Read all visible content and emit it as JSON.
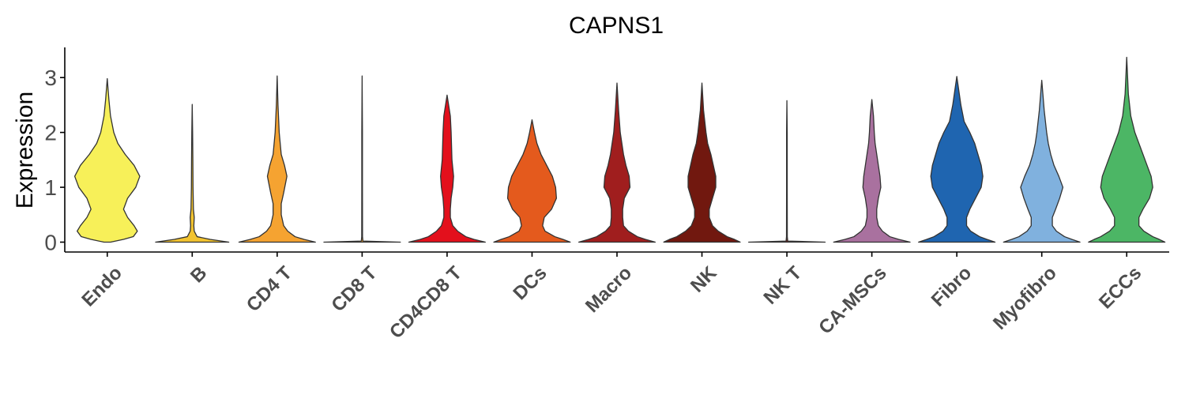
{
  "chart_data": {
    "type": "violin",
    "title": "CAPNS1",
    "xlabel": "",
    "ylabel": "Expression",
    "ylim": [
      -0.18,
      3.55
    ],
    "yticks": [
      0,
      1,
      2,
      3
    ],
    "grid": false,
    "legend": "none",
    "categories": [
      "Endo",
      "B",
      "CD4 T",
      "CD8 T",
      "CD4CD8 T",
      "DCs",
      "Macro",
      "NK",
      "NK T",
      "CA-MSCs",
      "Fibro",
      "Myofibro",
      "ECCs"
    ],
    "series": [
      {
        "category": "Endo",
        "color": "#F7F059",
        "max": 2.98,
        "profile": [
          [
            0,
            0.04
          ],
          [
            0.05,
            0.2
          ],
          [
            0.1,
            0.32
          ],
          [
            0.2,
            0.37
          ],
          [
            0.3,
            0.33
          ],
          [
            0.45,
            0.25
          ],
          [
            0.6,
            0.2
          ],
          [
            0.8,
            0.25
          ],
          [
            1.0,
            0.35
          ],
          [
            1.2,
            0.4
          ],
          [
            1.4,
            0.33
          ],
          [
            1.6,
            0.22
          ],
          [
            1.8,
            0.13
          ],
          [
            2.0,
            0.08
          ],
          [
            2.3,
            0.04
          ],
          [
            2.6,
            0.02
          ],
          [
            2.98,
            0
          ]
        ]
      },
      {
        "category": "B",
        "color": "#F2C330",
        "max": 2.51,
        "profile": [
          [
            0,
            0.45
          ],
          [
            0.05,
            0.22
          ],
          [
            0.1,
            0.06
          ],
          [
            0.2,
            0.025
          ],
          [
            0.3,
            0.02
          ],
          [
            0.45,
            0.025
          ],
          [
            0.6,
            0.015
          ],
          [
            1.0,
            0.01
          ],
          [
            1.5,
            0.008
          ],
          [
            2.0,
            0.005
          ],
          [
            2.51,
            0
          ]
        ]
      },
      {
        "category": "CD4 T",
        "color": "#F5A331",
        "max": 3.03,
        "profile": [
          [
            0,
            0.47
          ],
          [
            0.05,
            0.33
          ],
          [
            0.1,
            0.22
          ],
          [
            0.2,
            0.13
          ],
          [
            0.3,
            0.08
          ],
          [
            0.5,
            0.05
          ],
          [
            0.7,
            0.05
          ],
          [
            0.9,
            0.08
          ],
          [
            1.2,
            0.12
          ],
          [
            1.4,
            0.09
          ],
          [
            1.6,
            0.05
          ],
          [
            2.0,
            0.025
          ],
          [
            2.5,
            0.01
          ],
          [
            3.03,
            0
          ]
        ]
      },
      {
        "category": "CD8 T",
        "color": "#F5A331",
        "max": 3.03,
        "profile": [
          [
            0,
            0.47
          ],
          [
            0.02,
            0.01
          ],
          [
            0.1,
            0.005
          ],
          [
            1.0,
            0.004
          ],
          [
            2.0,
            0.004
          ],
          [
            3.03,
            0
          ]
        ]
      },
      {
        "category": "CD4CD8 T",
        "color": "#E3101C",
        "max": 2.68,
        "profile": [
          [
            0,
            0.47
          ],
          [
            0.05,
            0.33
          ],
          [
            0.1,
            0.23
          ],
          [
            0.2,
            0.13
          ],
          [
            0.3,
            0.07
          ],
          [
            0.45,
            0.04
          ],
          [
            0.6,
            0.04
          ],
          [
            0.8,
            0.05
          ],
          [
            1.0,
            0.07
          ],
          [
            1.2,
            0.08
          ],
          [
            1.5,
            0.06
          ],
          [
            2.0,
            0.05
          ],
          [
            2.3,
            0.04
          ],
          [
            2.68,
            0
          ]
        ]
      },
      {
        "category": "DCs",
        "color": "#E45A1D",
        "max": 2.23,
        "profile": [
          [
            0,
            0.47
          ],
          [
            0.05,
            0.38
          ],
          [
            0.1,
            0.28
          ],
          [
            0.2,
            0.16
          ],
          [
            0.3,
            0.13
          ],
          [
            0.45,
            0.15
          ],
          [
            0.6,
            0.24
          ],
          [
            0.8,
            0.3
          ],
          [
            1.0,
            0.29
          ],
          [
            1.2,
            0.25
          ],
          [
            1.4,
            0.18
          ],
          [
            1.6,
            0.11
          ],
          [
            1.8,
            0.06
          ],
          [
            2.0,
            0.03
          ],
          [
            2.23,
            0
          ]
        ]
      },
      {
        "category": "Macro",
        "color": "#A01E1E",
        "max": 2.9,
        "profile": [
          [
            0,
            0.47
          ],
          [
            0.05,
            0.35
          ],
          [
            0.1,
            0.25
          ],
          [
            0.2,
            0.14
          ],
          [
            0.3,
            0.08
          ],
          [
            0.45,
            0.07
          ],
          [
            0.6,
            0.07
          ],
          [
            0.8,
            0.09
          ],
          [
            1.0,
            0.16
          ],
          [
            1.2,
            0.15
          ],
          [
            1.4,
            0.11
          ],
          [
            1.6,
            0.08
          ],
          [
            1.8,
            0.06
          ],
          [
            2.0,
            0.04
          ],
          [
            2.4,
            0.02
          ],
          [
            2.9,
            0
          ]
        ]
      },
      {
        "category": "NK",
        "color": "#71180F",
        "max": 2.9,
        "profile": [
          [
            0,
            0.47
          ],
          [
            0.05,
            0.4
          ],
          [
            0.1,
            0.31
          ],
          [
            0.2,
            0.2
          ],
          [
            0.3,
            0.13
          ],
          [
            0.45,
            0.09
          ],
          [
            0.6,
            0.09
          ],
          [
            0.8,
            0.13
          ],
          [
            1.0,
            0.17
          ],
          [
            1.2,
            0.17
          ],
          [
            1.4,
            0.14
          ],
          [
            1.6,
            0.11
          ],
          [
            1.8,
            0.07
          ],
          [
            2.0,
            0.05
          ],
          [
            2.4,
            0.02
          ],
          [
            2.9,
            0
          ]
        ]
      },
      {
        "category": "NK T",
        "color": "#71180F",
        "max": 2.58,
        "profile": [
          [
            0,
            0.47
          ],
          [
            0.02,
            0.01
          ],
          [
            0.1,
            0.005
          ],
          [
            1.0,
            0.004
          ],
          [
            2.0,
            0.004
          ],
          [
            2.58,
            0
          ]
        ]
      },
      {
        "category": "CA-MSCs",
        "color": "#A9719F",
        "max": 2.6,
        "profile": [
          [
            0,
            0.47
          ],
          [
            0.05,
            0.33
          ],
          [
            0.1,
            0.22
          ],
          [
            0.2,
            0.13
          ],
          [
            0.3,
            0.08
          ],
          [
            0.45,
            0.06
          ],
          [
            0.6,
            0.06
          ],
          [
            0.8,
            0.08
          ],
          [
            1.0,
            0.11
          ],
          [
            1.2,
            0.1
          ],
          [
            1.4,
            0.08
          ],
          [
            1.6,
            0.06
          ],
          [
            1.8,
            0.04
          ],
          [
            2.0,
            0.03
          ],
          [
            2.3,
            0.02
          ],
          [
            2.6,
            0
          ]
        ]
      },
      {
        "category": "Fibro",
        "color": "#1F65B0",
        "max": 3.02,
        "profile": [
          [
            0,
            0.47
          ],
          [
            0.05,
            0.37
          ],
          [
            0.1,
            0.28
          ],
          [
            0.2,
            0.17
          ],
          [
            0.3,
            0.12
          ],
          [
            0.45,
            0.12
          ],
          [
            0.6,
            0.16
          ],
          [
            0.8,
            0.23
          ],
          [
            1.0,
            0.3
          ],
          [
            1.2,
            0.32
          ],
          [
            1.4,
            0.3
          ],
          [
            1.6,
            0.26
          ],
          [
            1.8,
            0.22
          ],
          [
            2.0,
            0.16
          ],
          [
            2.2,
            0.09
          ],
          [
            2.5,
            0.05
          ],
          [
            3.02,
            0
          ]
        ]
      },
      {
        "category": "Myofibro",
        "color": "#80B1DE",
        "max": 2.95,
        "profile": [
          [
            0,
            0.47
          ],
          [
            0.05,
            0.37
          ],
          [
            0.1,
            0.28
          ],
          [
            0.2,
            0.18
          ],
          [
            0.3,
            0.13
          ],
          [
            0.45,
            0.13
          ],
          [
            0.6,
            0.17
          ],
          [
            0.8,
            0.22
          ],
          [
            1.0,
            0.26
          ],
          [
            1.2,
            0.21
          ],
          [
            1.4,
            0.15
          ],
          [
            1.6,
            0.11
          ],
          [
            1.8,
            0.08
          ],
          [
            2.0,
            0.06
          ],
          [
            2.4,
            0.03
          ],
          [
            2.95,
            0
          ]
        ]
      },
      {
        "category": "ECCs",
        "color": "#4CB665",
        "max": 3.37,
        "profile": [
          [
            0,
            0.47
          ],
          [
            0.05,
            0.4
          ],
          [
            0.1,
            0.32
          ],
          [
            0.2,
            0.21
          ],
          [
            0.3,
            0.15
          ],
          [
            0.45,
            0.15
          ],
          [
            0.6,
            0.2
          ],
          [
            0.8,
            0.28
          ],
          [
            1.0,
            0.32
          ],
          [
            1.2,
            0.3
          ],
          [
            1.4,
            0.25
          ],
          [
            1.6,
            0.2
          ],
          [
            1.8,
            0.15
          ],
          [
            2.0,
            0.1
          ],
          [
            2.3,
            0.05
          ],
          [
            2.7,
            0.02
          ],
          [
            3.37,
            0
          ]
        ]
      }
    ]
  }
}
